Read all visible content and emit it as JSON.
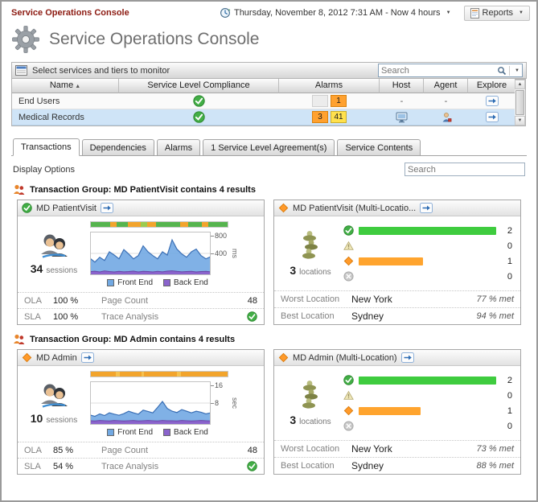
{
  "topbar": {
    "breadcrumb": "Service Operations Console",
    "time_range": "Thursday, November 8, 2012 7:31 AM - Now 4 hours",
    "reports_label": "Reports"
  },
  "header": {
    "title": "Service Operations Console"
  },
  "toolbar": {
    "select_label": "Select services and tiers to monitor",
    "search_placeholder": "Search"
  },
  "icons": {
    "caret": "▼",
    "sort_asc": "▲",
    "scroll_up": "▲",
    "scroll_down": "▼"
  },
  "table": {
    "columns": {
      "name": "Name",
      "compliance": "Service Level Compliance",
      "alarms": "Alarms",
      "host": "Host",
      "agent": "Agent",
      "explore": "Explore"
    },
    "rows": [
      {
        "name": "End Users",
        "compliance": "normal",
        "alarms": [
          {
            "type": "empty",
            "count": ""
          },
          {
            "type": "critical",
            "count": "1"
          }
        ],
        "host": "-",
        "agent": "-"
      },
      {
        "name": "Medical Records",
        "compliance": "normal",
        "selected": true,
        "alarms": [
          {
            "type": "critical",
            "count": "3"
          },
          {
            "type": "warning",
            "count": "41"
          }
        ],
        "host": "host-icon",
        "agent": "agent-icon"
      }
    ]
  },
  "tabs": {
    "active": "Transactions",
    "items": [
      "Transactions",
      "Dependencies",
      "Alarms",
      "1 Service Level Agreement(s)",
      "Service Contents"
    ]
  },
  "filter": {
    "display_options_label": "Display Options",
    "search_placeholder": "Search"
  },
  "groups": [
    {
      "title": "Transaction Group: MD PatientVisit contains 4 results",
      "detail_card": {
        "title": "MD PatientVisit",
        "status": "normal",
        "stat_value": "34",
        "stat_label": "sessions",
        "strip": [
          {
            "c": "#56b44e",
            "w": 9
          },
          {
            "c": "#f2a42c",
            "w": 3
          },
          {
            "c": "#56b44e",
            "w": 5
          },
          {
            "c": "#f2a42c",
            "w": 6
          },
          {
            "c": "#9ccb4e",
            "w": 3
          },
          {
            "c": "#f2a42c",
            "w": 4
          },
          {
            "c": "#56b44e",
            "w": 11
          },
          {
            "c": "#f2a42c",
            "w": 4
          },
          {
            "c": "#56b44e",
            "w": 6
          },
          {
            "c": "#f2a42c",
            "w": 3
          },
          {
            "c": "#56b44e",
            "w": 9
          }
        ],
        "chart_data": {
          "type": "area",
          "unit": "ms",
          "ylim": [
            0,
            800
          ],
          "yticks": [
            400,
            800
          ],
          "series": [
            {
              "name": "Front End",
              "color": "#72a9e3",
              "line": "#3a6fb5",
              "values": [
                310,
                240,
                330,
                270,
                430,
                370,
                300,
                470,
                390,
                300,
                360,
                540,
                430,
                360,
                300,
                430,
                370,
                650,
                480,
                390,
                330,
                430,
                480,
                360,
                300,
                340
              ]
            },
            {
              "name": "Back End",
              "color": "#8a63cc",
              "line": "#6a48a8",
              "values": [
                65,
                72,
                60,
                78,
                66,
                60,
                70,
                62,
                66,
                74,
                60,
                70,
                66,
                60,
                70,
                62,
                74,
                80,
                70,
                62,
                66,
                70,
                60,
                66,
                70,
                62
              ]
            }
          ]
        },
        "legend": [
          "Front End",
          "Back End"
        ],
        "metrics": [
          {
            "label": "OLA",
            "value": "100 %",
            "label2": "Page Count",
            "value2": "48"
          },
          {
            "label": "SLA",
            "value": "100 %",
            "label2": "Trace Analysis",
            "value2_icon": "normal-check"
          }
        ]
      },
      "location_card": {
        "title": "MD PatientVisit (Multi-Locatio...",
        "status": "critical",
        "stat_value": "3",
        "stat_label": "locations",
        "severity_rows": [
          {
            "severity": "normal",
            "count": "2",
            "bar_color": "#3fcc3f",
            "bar_pct": 100
          },
          {
            "severity": "warning",
            "count": "0",
            "bar_pct": 0
          },
          {
            "severity": "critical",
            "count": "1",
            "bar_color": "#ffa42e",
            "bar_pct": 47
          },
          {
            "severity": "fatal",
            "count": "0",
            "bar_pct": 0
          }
        ],
        "worst": {
          "label": "Worst Location",
          "name": "New York",
          "met": "77 % met"
        },
        "best": {
          "label": "Best Location",
          "name": "Sydney",
          "met": "94 % met"
        }
      }
    },
    {
      "title": "Transaction Group: MD Admin contains 4 results",
      "detail_card": {
        "title": "MD Admin",
        "status": "critical",
        "stat_value": "10",
        "stat_label": "sessions",
        "strip": [
          {
            "c": "#f2a42c",
            "w": 18
          },
          {
            "c": "#f6c14e",
            "w": 3
          },
          {
            "c": "#f2a42c",
            "w": 16
          },
          {
            "c": "#f6c14e",
            "w": 2
          },
          {
            "c": "#f2a42c",
            "w": 24
          },
          {
            "c": "#f6c14e",
            "w": 3
          },
          {
            "c": "#f2a42c",
            "w": 34
          }
        ],
        "chart_data": {
          "type": "area",
          "unit": "sec",
          "ylim": [
            0,
            16
          ],
          "yticks": [
            8,
            16
          ],
          "series": [
            {
              "name": "Front End",
              "color": "#72a9e3",
              "line": "#3a6fb5",
              "values": [
                3.6,
                3.1,
                4.0,
                3.4,
                4.4,
                3.9,
                3.5,
                4.1,
                5.0,
                4.4,
                3.9,
                5.4,
                4.9,
                4.4,
                6.4,
                8.6,
                6.0,
                5.0,
                4.5,
                5.6,
                5.0,
                4.4,
                5.0,
                4.6,
                4.0,
                4.4
              ]
            },
            {
              "name": "Back End",
              "color": "#8a63cc",
              "line": "#6a48a8",
              "values": [
                1.5,
                1.4,
                1.6,
                1.5,
                1.4,
                1.6,
                1.5,
                1.4,
                1.5,
                1.6,
                1.4,
                1.5,
                1.6,
                1.5,
                1.4,
                1.6,
                1.5,
                1.5,
                1.4,
                1.6,
                1.5,
                1.4,
                1.5,
                1.6,
                1.5,
                1.4
              ]
            }
          ]
        },
        "legend": [
          "Front End",
          "Back End"
        ],
        "metrics": [
          {
            "label": "OLA",
            "value": "85 %",
            "label2": "Page Count",
            "value2": "48"
          },
          {
            "label": "SLA",
            "value": "54 %",
            "label2": "Trace Analysis",
            "value2_icon": "normal-check"
          }
        ]
      },
      "location_card": {
        "title": "MD Admin (Multi-Location)",
        "status": "critical",
        "stat_value": "3",
        "stat_label": "locations",
        "severity_rows": [
          {
            "severity": "normal",
            "count": "2",
            "bar_color": "#3fcc3f",
            "bar_pct": 100
          },
          {
            "severity": "warning",
            "count": "0",
            "bar_pct": 0
          },
          {
            "severity": "critical",
            "count": "1",
            "bar_color": "#ffa42e",
            "bar_pct": 45
          },
          {
            "severity": "fatal",
            "count": "0",
            "bar_pct": 0
          }
        ],
        "worst": {
          "label": "Worst Location",
          "name": "New York",
          "met": "73 % met"
        },
        "best": {
          "label": "Best Location",
          "name": "Sydney",
          "met": "88 % met"
        }
      }
    }
  ]
}
